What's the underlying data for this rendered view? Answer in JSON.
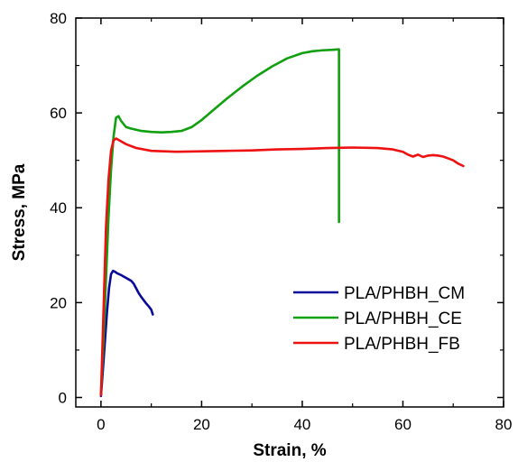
{
  "chart_data": {
    "type": "line",
    "xlabel": "Strain, %",
    "ylabel": "Stress, MPa",
    "xlim": [
      -5,
      80
    ],
    "ylim": [
      -2,
      80
    ],
    "xticks": [
      0,
      20,
      40,
      60,
      80
    ],
    "yticks": [
      0,
      20,
      40,
      60,
      80
    ],
    "grid": false,
    "legend_position": "center-right",
    "series": [
      {
        "name": "PLA/PHBH_CM",
        "color": "#0a0a9a",
        "x": [
          0.0,
          0.4,
          0.8,
          1.2,
          1.6,
          2.0,
          2.4,
          2.8,
          3.2,
          4.0,
          5.0,
          6.0,
          6.5,
          7.0,
          7.5,
          8.0,
          8.5,
          9.0,
          9.5,
          10.0,
          10.3
        ],
        "y": [
          0.3,
          6,
          12,
          18,
          23,
          26,
          26.7,
          26.5,
          26.2,
          25.8,
          25.2,
          24.6,
          24.0,
          23.0,
          22.0,
          21.2,
          20.5,
          19.8,
          19.2,
          18.5,
          17.5
        ]
      },
      {
        "name": "PLA/PHBH_CE",
        "color": "#10a010",
        "x": [
          0.0,
          0.5,
          1.0,
          1.5,
          2.0,
          2.5,
          3.0,
          3.5,
          4.0,
          5.0,
          6.0,
          8.0,
          10.0,
          12.0,
          14.0,
          16.0,
          18.0,
          20.0,
          22.0,
          25.0,
          28.0,
          31.0,
          34.0,
          37.0,
          40.0,
          42.0,
          44.0,
          46.0,
          47.3,
          47.3
        ],
        "y": [
          0.5,
          12,
          25,
          38,
          48,
          55,
          59,
          59.3,
          58.3,
          57.0,
          56.7,
          56.2,
          56.0,
          55.9,
          56.0,
          56.2,
          57.0,
          58.5,
          60.3,
          63.0,
          65.5,
          67.8,
          69.8,
          71.5,
          72.6,
          73.0,
          73.2,
          73.3,
          73.4,
          37.0
        ]
      },
      {
        "name": "PLA/PHBH_FB",
        "color": "#ee1111",
        "x": [
          0.0,
          0.5,
          1.0,
          1.5,
          2.0,
          2.5,
          3.0,
          4.0,
          5.0,
          7.0,
          10.0,
          15.0,
          20.0,
          25.0,
          30.0,
          35.0,
          40.0,
          45.0,
          50.0,
          55.0,
          58.0,
          60.0,
          61.0,
          62.0,
          63.0,
          64.0,
          65.0,
          66.0,
          67.0,
          68.0,
          69.0,
          70.0,
          71.0,
          72.0
        ],
        "y": [
          0.5,
          18,
          36,
          46,
          52,
          54.2,
          54.6,
          54.0,
          53.4,
          52.6,
          52.0,
          51.8,
          51.9,
          52.0,
          52.1,
          52.3,
          52.4,
          52.6,
          52.7,
          52.6,
          52.3,
          51.8,
          51.2,
          50.8,
          51.2,
          50.7,
          51.0,
          51.1,
          51.0,
          50.8,
          50.4,
          50.0,
          49.3,
          48.8
        ]
      }
    ]
  }
}
